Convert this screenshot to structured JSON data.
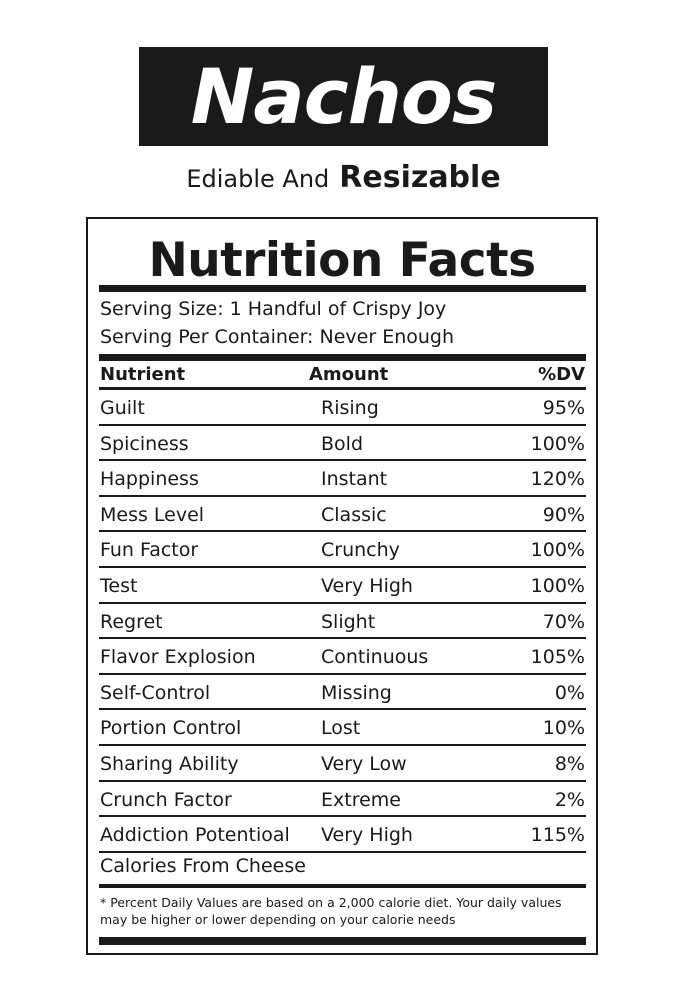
{
  "header": {
    "title": "Nachos",
    "subtitle_light": "Ediable And",
    "subtitle_bold": "Resizable"
  },
  "label": {
    "title": "Nutrition Facts",
    "serving_size": "Serving Size: 1 Handful of Crispy Joy",
    "servings_per_container": "Serving Per Container: Never Enough",
    "columns": {
      "nutrient": "Nutrient",
      "amount": "Amount",
      "dv": "%DV"
    },
    "rows": [
      {
        "nutrient": "Guilt",
        "amount": "Rising",
        "dv": "95%"
      },
      {
        "nutrient": "Spiciness",
        "amount": "Bold",
        "dv": "100%"
      },
      {
        "nutrient": "Happiness",
        "amount": "Instant",
        "dv": "120%"
      },
      {
        "nutrient": "Mess Level",
        "amount": "Classic",
        "dv": "90%"
      },
      {
        "nutrient": "Fun Factor",
        "amount": "Crunchy",
        "dv": "100%"
      },
      {
        "nutrient": "Test",
        "amount": "Very High",
        "dv": "100%"
      },
      {
        "nutrient": "Regret",
        "amount": "Slight",
        "dv": "70%"
      },
      {
        "nutrient": "Flavor Explosion",
        "amount": "Continuous",
        "dv": "105%"
      },
      {
        "nutrient": "Self-Control",
        "amount": "Missing",
        "dv": "0%"
      },
      {
        "nutrient": "Portion Control",
        "amount": "Lost",
        "dv": "10%"
      },
      {
        "nutrient": "Sharing Ability",
        "amount": "Very Low",
        "dv": "8%"
      },
      {
        "nutrient": "Crunch Factor",
        "amount": "Extreme",
        "dv": "2%"
      },
      {
        "nutrient": "Addiction Potentioal",
        "amount": "Very High",
        "dv": "115%"
      }
    ],
    "calories_row": "Calories From Cheese",
    "footnote": "* Percent Daily Values are based on a 2,000 calorie diet. Your daily values may be higher or lower depending on your calorie needs"
  },
  "colors": {
    "ink": "#1a1a1a",
    "background": "#ffffff"
  }
}
